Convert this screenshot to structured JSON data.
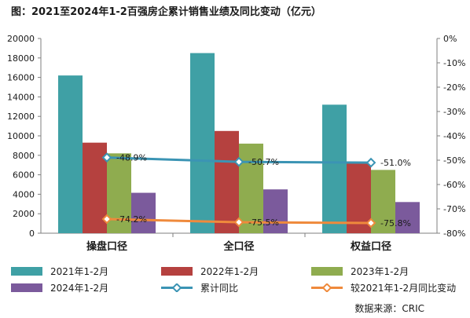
{
  "chart_data": {
    "type": "bar",
    "title": "图：2021至2024年1-2百强房企累计销售业绩及同比变动（亿元）",
    "categories": [
      "操盘口径",
      "全口径",
      "权益口径"
    ],
    "series": [
      {
        "name": "2021年1-2月",
        "type": "bar",
        "axis": "left",
        "color": "#3fa0a5",
        "values": [
          16200,
          18500,
          13200
        ]
      },
      {
        "name": "2022年1-2月",
        "type": "bar",
        "axis": "left",
        "color": "#b5413f",
        "values": [
          9300,
          10500,
          7200
        ]
      },
      {
        "name": "2023年1-2月",
        "type": "bar",
        "axis": "left",
        "color": "#8fac4f",
        "values": [
          8200,
          9200,
          6500
        ]
      },
      {
        "name": "2024年1-2月",
        "type": "bar",
        "axis": "left",
        "color": "#7b5a9c",
        "values": [
          4150,
          4500,
          3200
        ]
      },
      {
        "name": "累计同比",
        "type": "line",
        "axis": "right",
        "color": "#3b94b4",
        "values": [
          -48.9,
          -50.7,
          -51.0
        ],
        "labels": [
          "-48.9%",
          "-50.7%",
          "-51.0%"
        ]
      },
      {
        "name": "较2021年1-2月同比变动",
        "type": "line",
        "axis": "right",
        "color": "#ef8a3c",
        "values": [
          -74.2,
          -75.5,
          -75.8
        ],
        "labels": [
          "-74.2%",
          "-75.5%",
          "-75.8%"
        ]
      }
    ],
    "y_left": {
      "min": 0,
      "max": 20000,
      "ticks": [
        "0",
        "2000",
        "4000",
        "6000",
        "8000",
        "10000",
        "12000",
        "14000",
        "16000",
        "18000",
        "20000"
      ]
    },
    "y_right": {
      "min": -80,
      "max": 0,
      "ticks": [
        "0%",
        "-10%",
        "-20%",
        "-30%",
        "-40%",
        "-50%",
        "-60%",
        "-70%",
        "-80%"
      ]
    },
    "grid": false,
    "legend_position": "bottom"
  },
  "source_text": "数据来源：CRIC"
}
